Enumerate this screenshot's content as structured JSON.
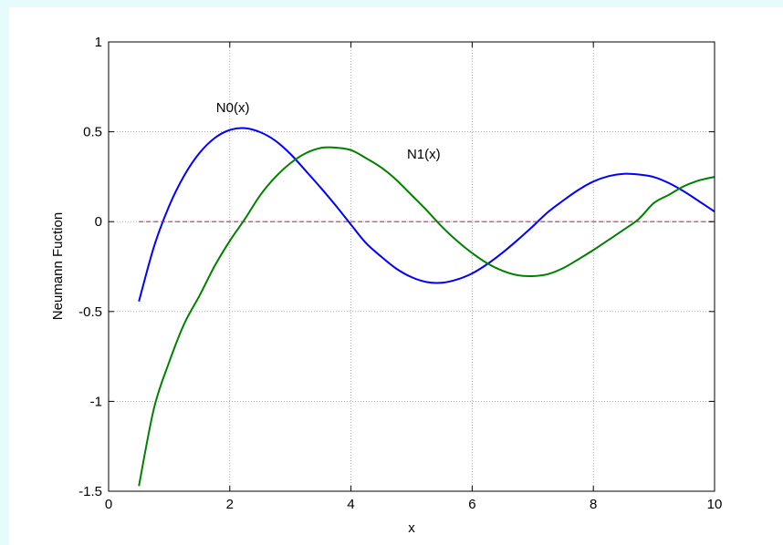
{
  "chart_data": {
    "type": "line",
    "xlabel": "x",
    "ylabel": "Neumann Fuction",
    "xlim": [
      0,
      10
    ],
    "ylim": [
      -1.5,
      1
    ],
    "xticks": [
      0,
      2,
      4,
      6,
      8,
      10
    ],
    "yticks": [
      -1.5,
      -1,
      -0.5,
      0,
      0.5,
      1
    ],
    "xtick_labels": [
      "0",
      "2",
      "4",
      "6",
      "8",
      "10"
    ],
    "ytick_labels": [
      "-1.5",
      "-1",
      "-0.5",
      "0",
      "0.5",
      "1"
    ],
    "grid": true,
    "series": [
      {
        "name": "N0(x)",
        "color": "#0000ff",
        "x": [
          0.5,
          0.75,
          1.0,
          1.25,
          1.5,
          1.75,
          2.0,
          2.25,
          2.5,
          2.75,
          3.0,
          3.25,
          3.5,
          3.75,
          4.0,
          4.25,
          4.5,
          4.75,
          5.0,
          5.25,
          5.5,
          5.75,
          6.0,
          6.25,
          6.5,
          6.75,
          7.0,
          7.25,
          7.5,
          7.75,
          8.0,
          8.25,
          8.5,
          8.75,
          9.0,
          9.25,
          9.5,
          9.75,
          10.0
        ],
        "values": [
          -0.444,
          -0.138,
          0.088,
          0.258,
          0.382,
          0.465,
          0.51,
          0.52,
          0.498,
          0.451,
          0.377,
          0.284,
          0.189,
          0.089,
          -0.017,
          -0.12,
          -0.195,
          -0.262,
          -0.309,
          -0.336,
          -0.34,
          -0.322,
          -0.288,
          -0.236,
          -0.173,
          -0.102,
          -0.026,
          0.053,
          0.117,
          0.176,
          0.223,
          0.253,
          0.266,
          0.262,
          0.248,
          0.214,
          0.167,
          0.112,
          0.056
        ]
      },
      {
        "name": "N1(x)",
        "color": "#008000",
        "x": [
          0.5,
          0.75,
          1.0,
          1.25,
          1.5,
          1.75,
          2.0,
          2.25,
          2.5,
          2.75,
          3.0,
          3.25,
          3.5,
          3.75,
          4.0,
          4.25,
          4.5,
          4.75,
          5.0,
          5.25,
          5.5,
          5.75,
          6.0,
          6.25,
          6.5,
          6.75,
          7.0,
          7.25,
          7.5,
          7.75,
          8.0,
          8.25,
          8.5,
          8.75,
          9.0,
          9.25,
          9.5,
          9.75,
          10.0
        ],
        "values": [
          -1.471,
          -1.037,
          -0.781,
          -0.567,
          -0.412,
          -0.247,
          -0.107,
          0.015,
          0.146,
          0.247,
          0.325,
          0.38,
          0.41,
          0.412,
          0.398,
          0.353,
          0.301,
          0.232,
          0.148,
          0.063,
          -0.028,
          -0.107,
          -0.175,
          -0.232,
          -0.273,
          -0.298,
          -0.303,
          -0.292,
          -0.259,
          -0.21,
          -0.158,
          -0.102,
          -0.045,
          0.015,
          0.104,
          0.15,
          0.198,
          0.23,
          0.249
        ]
      },
      {
        "name": "",
        "color": "#b03060",
        "style": "dashed",
        "x": [
          0.5,
          10.0
        ],
        "values": [
          0,
          0
        ]
      }
    ],
    "annotations": [
      {
        "text": "N0(x)",
        "x": 2.05,
        "y": 0.61
      },
      {
        "text": "N1(x)",
        "x": 5.2,
        "y": 0.35
      }
    ]
  }
}
